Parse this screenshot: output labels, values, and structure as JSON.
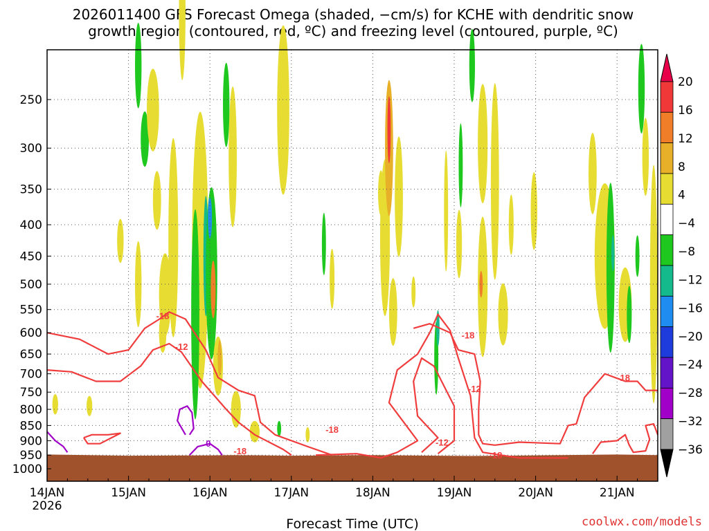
{
  "chart_data": {
    "type": "heatmap",
    "title_line1": "2026011400 GFS Forecast Omega (shaded, −cm/s) for KCHE with dendritic snow",
    "title_line2": "growth region (contoured, red, ºC) and freezing level (contoured, purple, ºC)",
    "xlabel": "Forecast Time (UTC)",
    "ylabel": "",
    "x_ticks": [
      "14JAN",
      "15JAN",
      "16JAN",
      "17JAN",
      "18JAN",
      "19JAN",
      "20JAN",
      "21JAN"
    ],
    "x_first_sub": "2026",
    "xlim_days": [
      0,
      7.5
    ],
    "y_ticks": [
      250,
      300,
      350,
      400,
      450,
      500,
      550,
      600,
      650,
      700,
      750,
      800,
      850,
      900,
      950,
      1000
    ],
    "ylim_hpa": [
      1050,
      200
    ],
    "colorbar": {
      "labels": [
        "20",
        "16",
        "12",
        "8",
        "4",
        "−4",
        "−8",
        "−12",
        "−16",
        "−20",
        "−24",
        "−28",
        "−32",
        "−36"
      ],
      "colors": [
        "#e8004a",
        "#f03838",
        "#f07d28",
        "#e8b028",
        "#e6dc32",
        "#ffffff",
        "#1ec81e",
        "#14b98c",
        "#1e8cf0",
        "#1e3cdc",
        "#6414c8",
        "#a000c8",
        "#a0a0a0",
        "#000000"
      ]
    },
    "terrain_color": "#a0522d",
    "contour_colors": {
      "snow_growth": "#f03c3c",
      "freezing_level": "#a000c8"
    },
    "contour_labels": [
      {
        "text": "-18",
        "day": 1.42,
        "p": 563
      },
      {
        "text": "-12",
        "day": 1.65,
        "p": 632
      },
      {
        "text": "0",
        "day": 1.98,
        "p": 908
      },
      {
        "text": "-18",
        "day": 2.37,
        "p": 935
      },
      {
        "text": "-18",
        "day": 3.5,
        "p": 862
      },
      {
        "text": "-12",
        "day": 4.85,
        "p": 905
      },
      {
        "text": "-18",
        "day": 5.17,
        "p": 605
      },
      {
        "text": "-12",
        "day": 5.25,
        "p": 740
      },
      {
        "text": "-18",
        "day": 5.51,
        "p": 950
      },
      {
        "text": "-18",
        "day": 7.08,
        "p": 710
      }
    ],
    "credit": "coolwx.com/models"
  }
}
